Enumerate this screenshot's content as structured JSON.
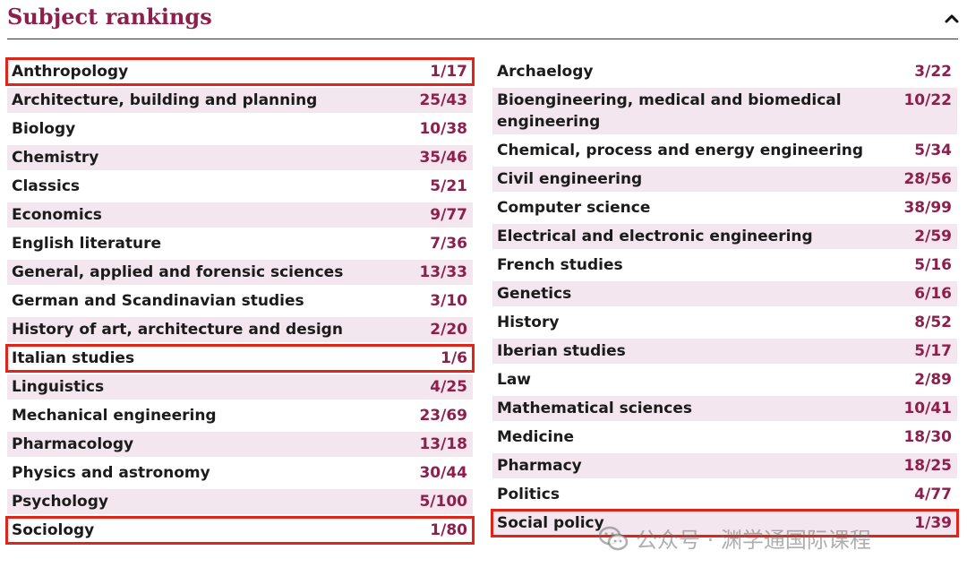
{
  "section": {
    "title": "Subject rankings",
    "toggle_icon": "chevron-up-icon"
  },
  "colors": {
    "accent": "#8e1f4d",
    "row_shade": "#f3e6ee",
    "highlight_border": "#e02418",
    "text": "#1b1b1b"
  },
  "left_column": [
    {
      "subject": "Anthropology",
      "rank": "1/17",
      "shaded": false,
      "highlighted": true
    },
    {
      "subject": "Architecture, building and planning",
      "rank": "25/43",
      "shaded": true,
      "highlighted": false
    },
    {
      "subject": "Biology",
      "rank": "10/38",
      "shaded": false,
      "highlighted": false
    },
    {
      "subject": "Chemistry",
      "rank": "35/46",
      "shaded": true,
      "highlighted": false
    },
    {
      "subject": "Classics",
      "rank": "5/21",
      "shaded": false,
      "highlighted": false
    },
    {
      "subject": "Economics",
      "rank": "9/77",
      "shaded": true,
      "highlighted": false
    },
    {
      "subject": "English literature",
      "rank": "7/36",
      "shaded": false,
      "highlighted": false
    },
    {
      "subject": "General, applied and forensic sciences",
      "rank": "13/33",
      "shaded": true,
      "highlighted": false
    },
    {
      "subject": "German and Scandinavian studies",
      "rank": "3/10",
      "shaded": false,
      "highlighted": false
    },
    {
      "subject": "History of art, architecture and design",
      "rank": "2/20",
      "shaded": true,
      "highlighted": false
    },
    {
      "subject": "Italian studies",
      "rank": "1/6",
      "shaded": false,
      "highlighted": true
    },
    {
      "subject": "Linguistics",
      "rank": "4/25",
      "shaded": true,
      "highlighted": false
    },
    {
      "subject": "Mechanical engineering",
      "rank": "23/69",
      "shaded": false,
      "highlighted": false
    },
    {
      "subject": "Pharmacology",
      "rank": "13/18",
      "shaded": true,
      "highlighted": false
    },
    {
      "subject": "Physics and astronomy",
      "rank": "30/44",
      "shaded": false,
      "highlighted": false
    },
    {
      "subject": "Psychology",
      "rank": "5/100",
      "shaded": true,
      "highlighted": false
    },
    {
      "subject": "Sociology",
      "rank": "1/80",
      "shaded": false,
      "highlighted": true
    }
  ],
  "right_column": [
    {
      "subject": "Archaelogy",
      "rank": "3/22",
      "shaded": false,
      "highlighted": false
    },
    {
      "subject": "Bioengineering, medical and biomedical engineering",
      "rank": "10/22",
      "shaded": true,
      "highlighted": false
    },
    {
      "subject": "Chemical, process and energy engineering",
      "rank": "5/34",
      "shaded": false,
      "highlighted": false
    },
    {
      "subject": "Civil engineering",
      "rank": "28/56",
      "shaded": true,
      "highlighted": false
    },
    {
      "subject": "Computer science",
      "rank": "38/99",
      "shaded": false,
      "highlighted": false
    },
    {
      "subject": "Electrical and electronic engineering",
      "rank": "2/59",
      "shaded": true,
      "highlighted": false
    },
    {
      "subject": "French studies",
      "rank": "5/16",
      "shaded": false,
      "highlighted": false
    },
    {
      "subject": "Genetics",
      "rank": "6/16",
      "shaded": true,
      "highlighted": false
    },
    {
      "subject": "History",
      "rank": "8/52",
      "shaded": false,
      "highlighted": false
    },
    {
      "subject": "Iberian studies",
      "rank": "5/17",
      "shaded": true,
      "highlighted": false
    },
    {
      "subject": "Law",
      "rank": "2/89",
      "shaded": false,
      "highlighted": false
    },
    {
      "subject": "Mathematical sciences",
      "rank": "10/41",
      "shaded": true,
      "highlighted": false
    },
    {
      "subject": "Medicine",
      "rank": "18/30",
      "shaded": false,
      "highlighted": false
    },
    {
      "subject": "Pharmacy",
      "rank": "18/25",
      "shaded": true,
      "highlighted": false
    },
    {
      "subject": "Politics",
      "rank": "4/77",
      "shaded": false,
      "highlighted": false
    },
    {
      "subject": "Social policy",
      "rank": "1/39",
      "shaded": true,
      "highlighted": true
    }
  ],
  "watermark": {
    "text": "公众号 · 渊学通国际课程",
    "icon": "wechat-icon"
  }
}
